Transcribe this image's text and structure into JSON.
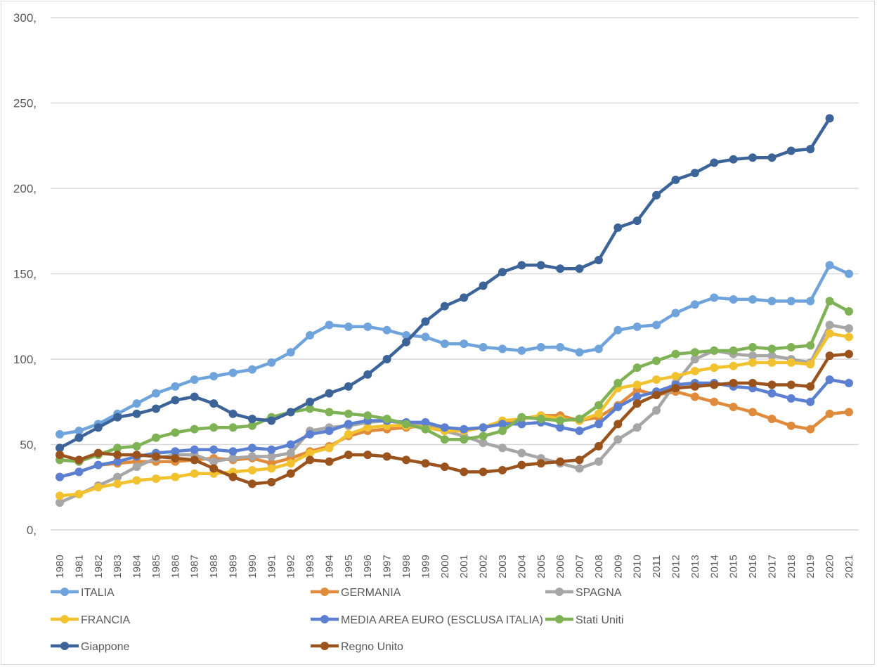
{
  "chart_data": {
    "type": "line",
    "title": "",
    "xlabel": "",
    "ylabel": "",
    "ylim": [
      0,
      300
    ],
    "yticks": [
      0,
      50,
      100,
      150,
      200,
      250,
      300
    ],
    "ytick_labels": [
      "0,",
      "50,",
      "100,",
      "150,",
      "200,",
      "250,",
      "300,"
    ],
    "grid": true,
    "legend_position": "bottom",
    "x": [
      "1980",
      "1981",
      "1982",
      "1983",
      "1984",
      "1985",
      "1986",
      "1987",
      "1988",
      "1989",
      "1990",
      "1991",
      "1992",
      "1993",
      "1994",
      "1995",
      "1996",
      "1997",
      "1998",
      "1999",
      "2000",
      "2001",
      "2002",
      "2003",
      "2004",
      "2005",
      "2006",
      "2007",
      "2008",
      "2009",
      "2010",
      "2011",
      "2012",
      "2013",
      "2014",
      "2015",
      "2016",
      "2017",
      "2018",
      "2019",
      "2020",
      "2021"
    ],
    "series": [
      {
        "name": "ITALIA",
        "color": "#6fa3dc",
        "values": [
          56,
          58,
          62,
          68,
          74,
          80,
          84,
          88,
          90,
          92,
          94,
          98,
          104,
          114,
          120,
          119,
          119,
          117,
          114,
          113,
          109,
          109,
          107,
          106,
          105,
          107,
          107,
          104,
          106,
          117,
          119,
          120,
          127,
          132,
          136,
          135,
          135,
          134,
          134,
          134,
          155,
          150
        ]
      },
      {
        "name": "GERMANIA",
        "color": "#e08a3c",
        "values": [
          31,
          34,
          38,
          39,
          40,
          40,
          40,
          41,
          42,
          41,
          42,
          39,
          42,
          46,
          49,
          55,
          58,
          59,
          60,
          61,
          59,
          58,
          60,
          63,
          65,
          67,
          67,
          64,
          66,
          73,
          82,
          79,
          81,
          78,
          75,
          72,
          69,
          65,
          61,
          59,
          68,
          69
        ]
      },
      {
        "name": "SPAGNA",
        "color": "#a6a6a6",
        "values": [
          16,
          21,
          26,
          31,
          37,
          42,
          44,
          44,
          40,
          42,
          43,
          43,
          45,
          58,
          60,
          61,
          63,
          64,
          62,
          61,
          58,
          55,
          51,
          48,
          45,
          42,
          39,
          36,
          40,
          53,
          60,
          70,
          86,
          100,
          105,
          103,
          102,
          102,
          100,
          98,
          120,
          118
        ]
      },
      {
        "name": "FRANCIA",
        "color": "#f2c12e",
        "values": [
          20,
          21,
          25,
          27,
          29,
          30,
          31,
          33,
          33,
          34,
          35,
          36,
          39,
          45,
          48,
          56,
          60,
          61,
          61,
          60,
          58,
          58,
          60,
          64,
          65,
          67,
          65,
          64,
          68,
          83,
          85,
          88,
          90,
          93,
          95,
          96,
          98,
          98,
          98,
          97,
          115,
          113
        ]
      },
      {
        "name": "MEDIA AREA EURO (ESCLUSA ITALIA)",
        "color": "#5b7fd1",
        "values": [
          31,
          34,
          38,
          40,
          43,
          45,
          46,
          47,
          47,
          46,
          48,
          47,
          50,
          56,
          58,
          62,
          64,
          64,
          63,
          63,
          60,
          59,
          60,
          62,
          62,
          63,
          60,
          58,
          62,
          72,
          78,
          81,
          85,
          86,
          86,
          84,
          83,
          80,
          77,
          75,
          88,
          86
        ]
      },
      {
        "name": "Stati Uniti",
        "color": "#7fb255",
        "values": [
          41,
          40,
          44,
          48,
          49,
          54,
          57,
          59,
          60,
          60,
          61,
          66,
          69,
          71,
          69,
          68,
          67,
          65,
          62,
          59,
          53,
          53,
          55,
          58,
          66,
          65,
          64,
          65,
          73,
          86,
          95,
          99,
          103,
          104,
          105,
          105,
          107,
          106,
          107,
          108,
          134,
          128
        ]
      },
      {
        "name": "Giappone",
        "color": "#3c6498",
        "values": [
          48,
          54,
          60,
          66,
          68,
          71,
          76,
          78,
          74,
          68,
          65,
          64,
          69,
          75,
          80,
          84,
          91,
          100,
          110,
          122,
          131,
          136,
          143,
          151,
          155,
          155,
          153,
          153,
          158,
          177,
          181,
          196,
          205,
          209,
          215,
          217,
          218,
          218,
          222,
          223,
          241,
          null
        ]
      },
      {
        "name": "Regno Unito",
        "color": "#9a531c",
        "values": [
          44,
          41,
          45,
          44,
          44,
          43,
          42,
          41,
          36,
          31,
          27,
          28,
          33,
          41,
          40,
          44,
          44,
          43,
          41,
          39,
          37,
          34,
          34,
          35,
          38,
          39,
          40,
          41,
          49,
          62,
          74,
          79,
          83,
          84,
          85,
          86,
          86,
          85,
          85,
          84,
          102,
          103
        ]
      }
    ]
  }
}
